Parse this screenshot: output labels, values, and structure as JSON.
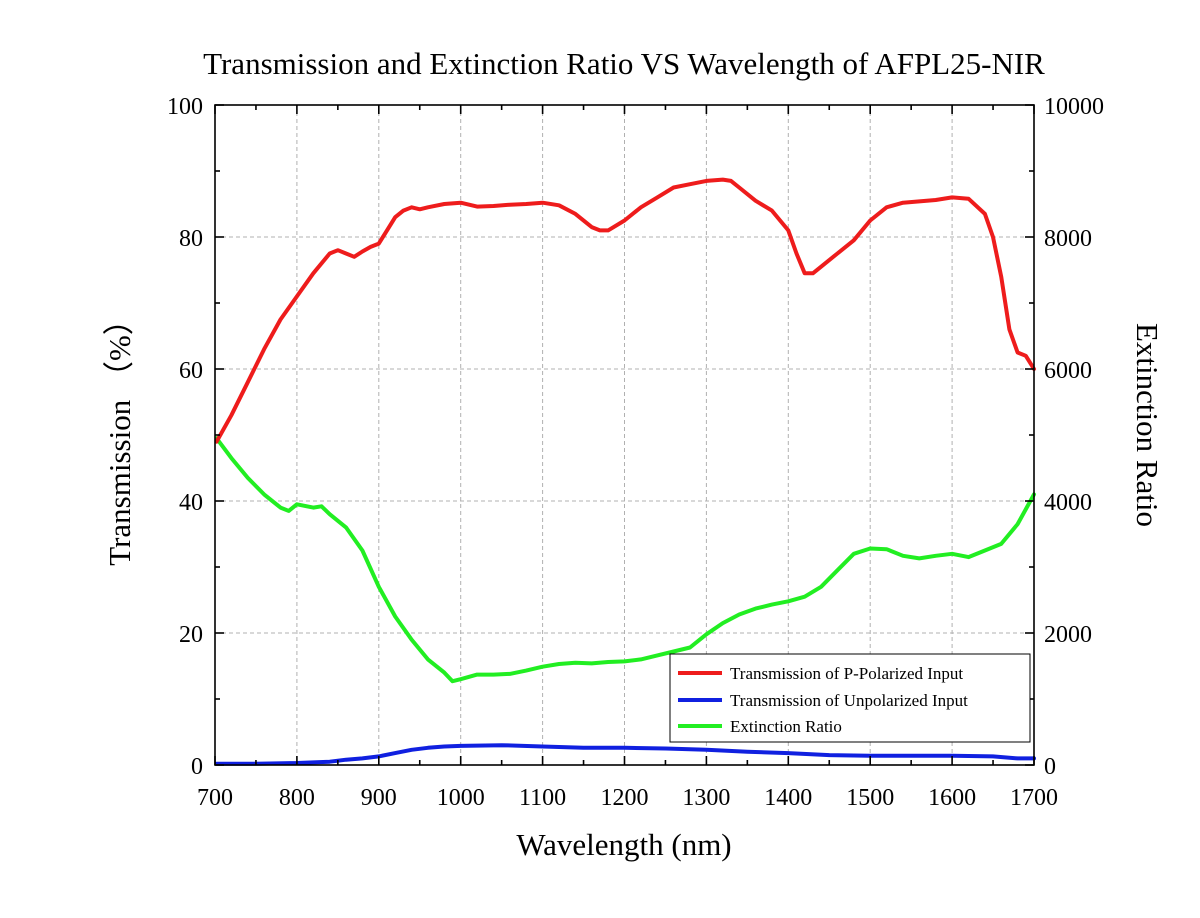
{
  "chart_data": {
    "type": "line",
    "title": "Transmission and Extinction Ratio VS Wavelength of AFPL25-NIR",
    "xlabel": "Wavelength (nm)",
    "ylabel": "Transmission （%）",
    "y2label": "Extinction Ratio",
    "xlim": [
      700,
      1700
    ],
    "ylim": [
      0,
      100
    ],
    "y2lim": [
      0,
      10000
    ],
    "xticks": [
      700,
      800,
      900,
      1000,
      1100,
      1200,
      1300,
      1400,
      1500,
      1600,
      1700
    ],
    "yticks": [
      0,
      20,
      40,
      60,
      80,
      100
    ],
    "y2ticks": [
      0,
      2000,
      4000,
      6000,
      8000,
      10000
    ],
    "grid": true,
    "legend_position": "bottom-right",
    "series": [
      {
        "name": "Transmission of P-Polarized Input",
        "axis": "left",
        "color": "#ee1c1c",
        "points": [
          [
            702,
            49
          ],
          [
            720,
            53
          ],
          [
            740,
            58
          ],
          [
            760,
            63
          ],
          [
            780,
            67.5
          ],
          [
            800,
            71
          ],
          [
            820,
            74.5
          ],
          [
            840,
            77.5
          ],
          [
            850,
            78
          ],
          [
            860,
            77.5
          ],
          [
            870,
            77
          ],
          [
            880,
            77.8
          ],
          [
            890,
            78.5
          ],
          [
            900,
            79
          ],
          [
            910,
            81
          ],
          [
            920,
            83
          ],
          [
            930,
            84
          ],
          [
            940,
            84.5
          ],
          [
            950,
            84.2
          ],
          [
            960,
            84.5
          ],
          [
            980,
            85
          ],
          [
            1000,
            85.2
          ],
          [
            1020,
            84.6
          ],
          [
            1040,
            84.7
          ],
          [
            1060,
            84.9
          ],
          [
            1080,
            85
          ],
          [
            1100,
            85.2
          ],
          [
            1120,
            84.8
          ],
          [
            1140,
            83.5
          ],
          [
            1160,
            81.5
          ],
          [
            1170,
            81
          ],
          [
            1180,
            81
          ],
          [
            1200,
            82.5
          ],
          [
            1220,
            84.5
          ],
          [
            1240,
            86
          ],
          [
            1260,
            87.5
          ],
          [
            1280,
            88
          ],
          [
            1300,
            88.5
          ],
          [
            1320,
            88.7
          ],
          [
            1330,
            88.5
          ],
          [
            1340,
            87.5
          ],
          [
            1360,
            85.5
          ],
          [
            1380,
            84
          ],
          [
            1400,
            81
          ],
          [
            1410,
            77.5
          ],
          [
            1420,
            74.5
          ],
          [
            1430,
            74.5
          ],
          [
            1440,
            75.5
          ],
          [
            1460,
            77.5
          ],
          [
            1480,
            79.5
          ],
          [
            1500,
            82.5
          ],
          [
            1520,
            84.5
          ],
          [
            1540,
            85.2
          ],
          [
            1560,
            85.4
          ],
          [
            1580,
            85.6
          ],
          [
            1600,
            86
          ],
          [
            1620,
            85.8
          ],
          [
            1640,
            83.5
          ],
          [
            1650,
            80
          ],
          [
            1660,
            74
          ],
          [
            1670,
            66
          ],
          [
            1680,
            62.5
          ],
          [
            1690,
            62
          ],
          [
            1700,
            60
          ]
        ]
      },
      {
        "name": "Transmission of Unpolarized Input",
        "axis": "left",
        "color": "#1020e0",
        "points": [
          [
            702,
            0.2
          ],
          [
            750,
            0.2
          ],
          [
            800,
            0.3
          ],
          [
            840,
            0.5
          ],
          [
            860,
            0.8
          ],
          [
            880,
            1
          ],
          [
            900,
            1.3
          ],
          [
            920,
            1.8
          ],
          [
            940,
            2.3
          ],
          [
            960,
            2.6
          ],
          [
            980,
            2.8
          ],
          [
            1000,
            2.9
          ],
          [
            1050,
            3
          ],
          [
            1100,
            2.8
          ],
          [
            1150,
            2.6
          ],
          [
            1200,
            2.6
          ],
          [
            1250,
            2.5
          ],
          [
            1300,
            2.3
          ],
          [
            1350,
            2
          ],
          [
            1400,
            1.8
          ],
          [
            1450,
            1.5
          ],
          [
            1500,
            1.4
          ],
          [
            1550,
            1.4
          ],
          [
            1600,
            1.4
          ],
          [
            1650,
            1.3
          ],
          [
            1680,
            1
          ],
          [
            1700,
            1
          ]
        ]
      },
      {
        "name": "Extinction Ratio",
        "axis": "right",
        "color": "#22ee22",
        "points": [
          [
            702,
            4950
          ],
          [
            720,
            4650
          ],
          [
            740,
            4350
          ],
          [
            760,
            4100
          ],
          [
            780,
            3900
          ],
          [
            790,
            3850
          ],
          [
            800,
            3950
          ],
          [
            820,
            3900
          ],
          [
            830,
            3920
          ],
          [
            840,
            3800
          ],
          [
            860,
            3600
          ],
          [
            880,
            3250
          ],
          [
            900,
            2700
          ],
          [
            920,
            2250
          ],
          [
            940,
            1900
          ],
          [
            960,
            1600
          ],
          [
            980,
            1400
          ],
          [
            990,
            1270
          ],
          [
            1000,
            1300
          ],
          [
            1020,
            1370
          ],
          [
            1040,
            1370
          ],
          [
            1060,
            1380
          ],
          [
            1080,
            1430
          ],
          [
            1100,
            1490
          ],
          [
            1120,
            1530
          ],
          [
            1140,
            1550
          ],
          [
            1160,
            1540
          ],
          [
            1180,
            1560
          ],
          [
            1200,
            1570
          ],
          [
            1220,
            1600
          ],
          [
            1240,
            1660
          ],
          [
            1260,
            1720
          ],
          [
            1280,
            1780
          ],
          [
            1300,
            1980
          ],
          [
            1320,
            2150
          ],
          [
            1340,
            2280
          ],
          [
            1360,
            2370
          ],
          [
            1380,
            2430
          ],
          [
            1400,
            2480
          ],
          [
            1420,
            2550
          ],
          [
            1440,
            2700
          ],
          [
            1460,
            2950
          ],
          [
            1480,
            3200
          ],
          [
            1500,
            3280
          ],
          [
            1520,
            3270
          ],
          [
            1540,
            3170
          ],
          [
            1560,
            3130
          ],
          [
            1580,
            3170
          ],
          [
            1600,
            3200
          ],
          [
            1620,
            3150
          ],
          [
            1640,
            3250
          ],
          [
            1660,
            3350
          ],
          [
            1680,
            3650
          ],
          [
            1700,
            4100
          ]
        ]
      }
    ]
  }
}
